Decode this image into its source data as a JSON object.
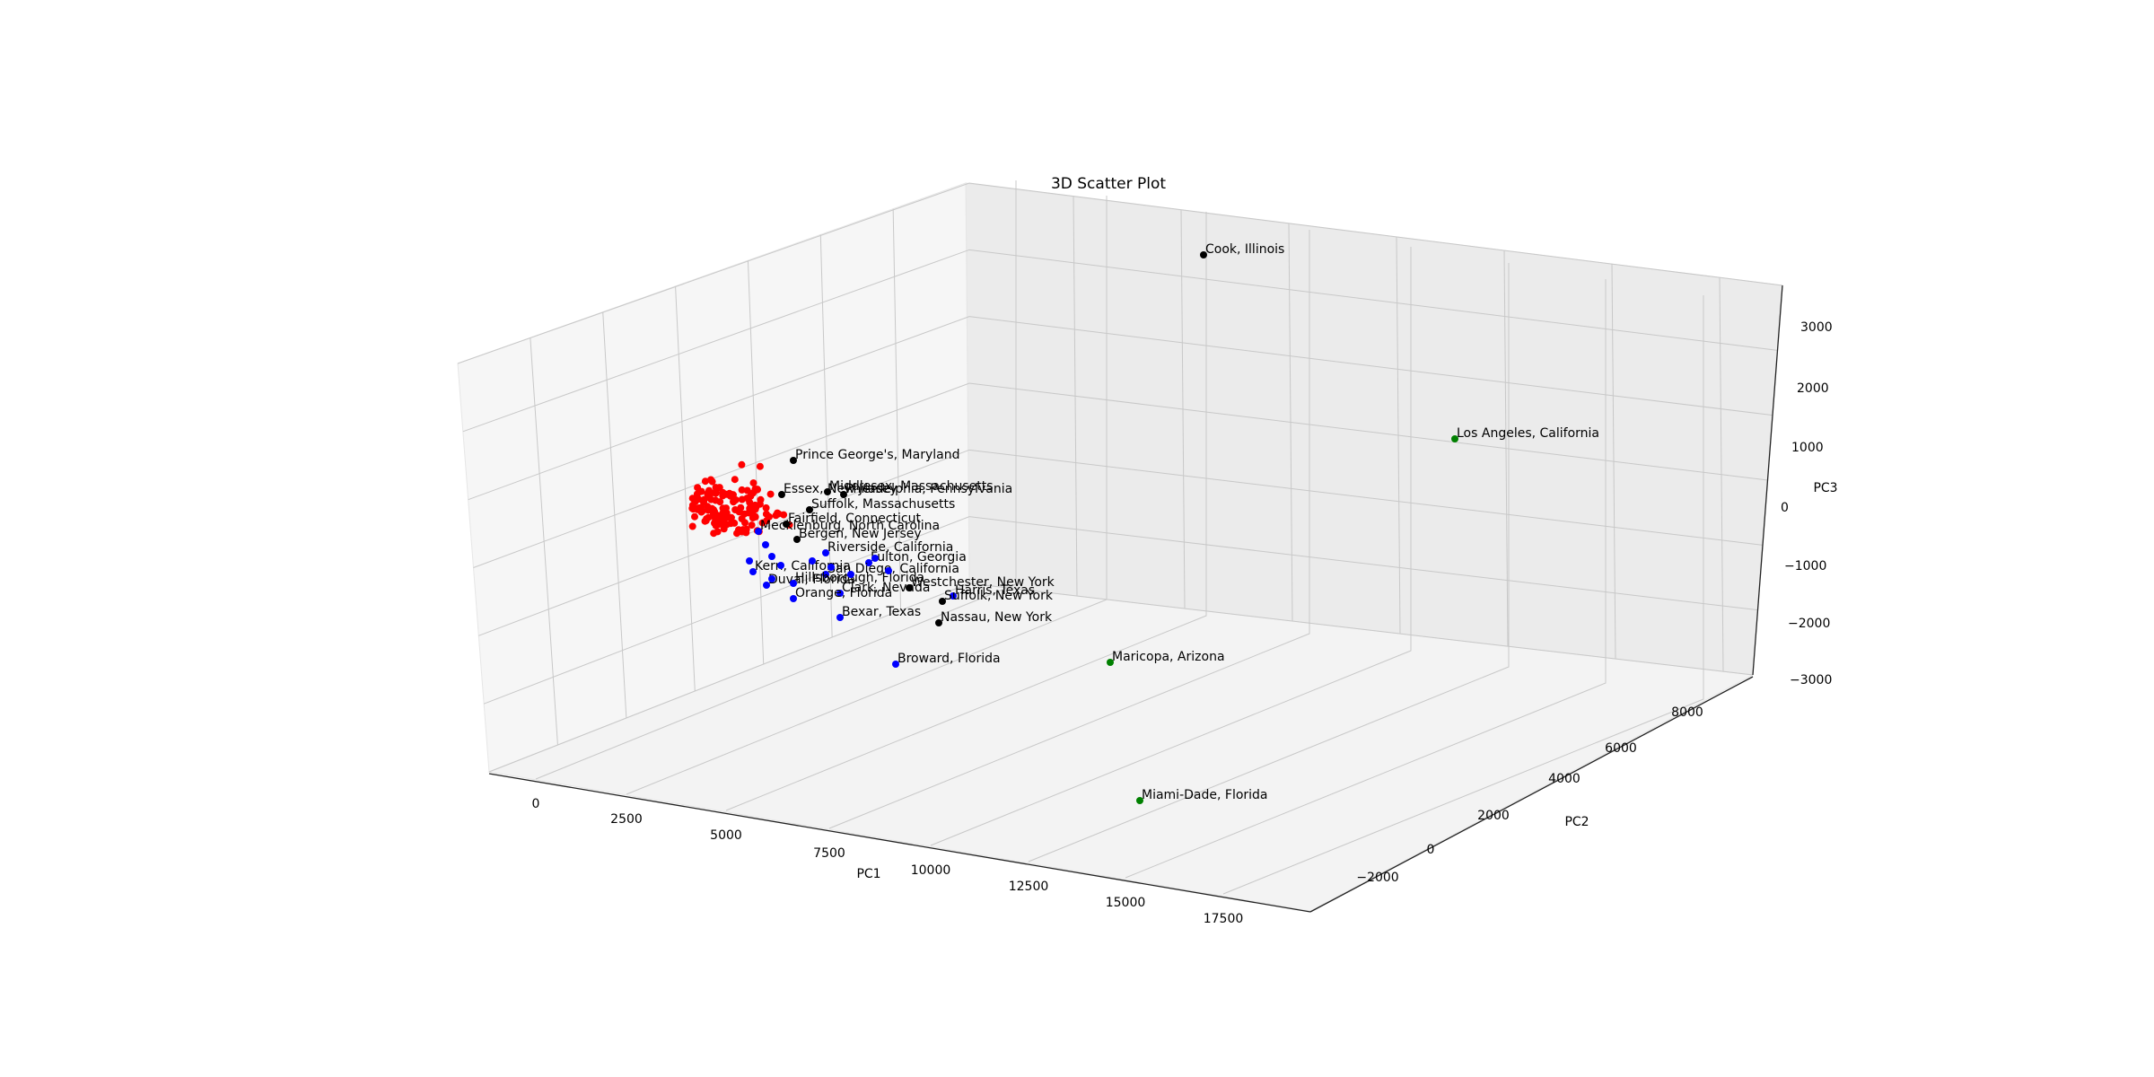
{
  "chart_data": {
    "type": "scatter",
    "title": "3D Scatter Plot",
    "xlabel": "PC1",
    "ylabel": "PC2",
    "zlabel": "PC3",
    "x_ticks": [
      "0",
      "2500",
      "5000",
      "7500",
      "10000",
      "12500",
      "15000",
      "17500"
    ],
    "y_ticks": [
      "−2000",
      "0",
      "2000",
      "4000",
      "6000",
      "8000"
    ],
    "z_ticks": [
      "−3000",
      "−2000",
      "−1000",
      "0",
      "1000",
      "2000",
      "3000"
    ],
    "grid": true,
    "colors": {
      "cluster_0": "#ff0000",
      "cluster_1": "#0000ff",
      "cluster_2": "#000000",
      "cluster_3": "#008000"
    },
    "labeled_points": [
      {
        "label": "Cook, Illinois",
        "color": "black"
      },
      {
        "label": "Los Angeles, California",
        "color": "green"
      },
      {
        "label": "Maricopa, Arizona",
        "color": "green"
      },
      {
        "label": "Miami-Dade, Florida",
        "color": "green"
      },
      {
        "label": "Broward, Florida",
        "color": "blue"
      },
      {
        "label": "Prince George's, Maryland",
        "color": "black"
      },
      {
        "label": "Essex, New Jersey",
        "color": "black"
      },
      {
        "label": "Middlesex, Massachusetts",
        "color": "black"
      },
      {
        "label": "Philadelphia, Pennsylvania",
        "color": "black"
      },
      {
        "label": "Suffolk, Massachusetts",
        "color": "black"
      },
      {
        "label": "Fairfield, Connecticut",
        "color": "black"
      },
      {
        "label": "Mecklenburg, North Carolina",
        "color": "blue"
      },
      {
        "label": "Bergen, New Jersey",
        "color": "black"
      },
      {
        "label": "Riverside, California",
        "color": "blue"
      },
      {
        "label": "Fulton, Georgia",
        "color": "blue"
      },
      {
        "label": "Kern, California",
        "color": "blue"
      },
      {
        "label": "San Diego, California",
        "color": "blue"
      },
      {
        "label": "Duval, Florida",
        "color": "blue"
      },
      {
        "label": "Hillsborough, Florida",
        "color": "blue"
      },
      {
        "label": "Clark, Nevada",
        "color": "blue"
      },
      {
        "label": "Westchester, New York",
        "color": "black"
      },
      {
        "label": "Harris, Texas",
        "color": "blue"
      },
      {
        "label": "Suffolk, New York",
        "color": "black"
      },
      {
        "label": "Orange, Florida",
        "color": "blue"
      },
      {
        "label": "Bexar, Texas",
        "color": "blue"
      },
      {
        "label": "Nassau, New York",
        "color": "black"
      }
    ]
  }
}
